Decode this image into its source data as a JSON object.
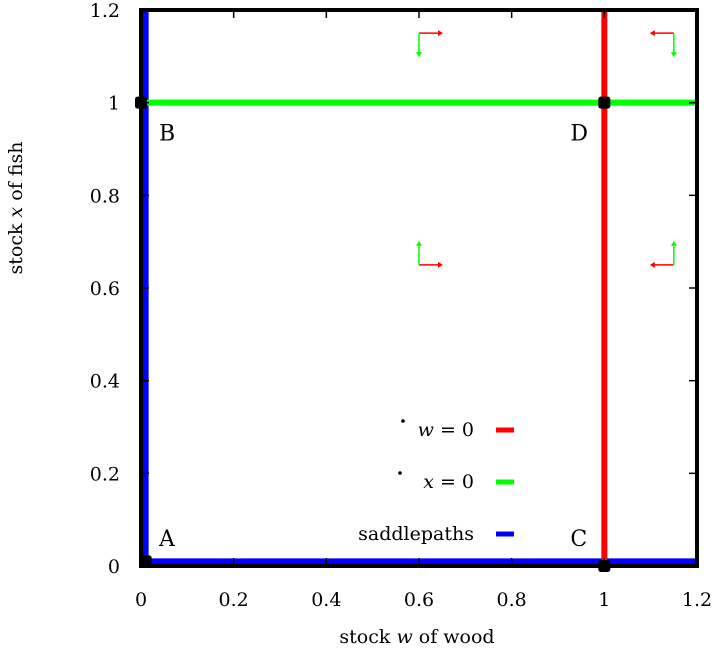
{
  "chart_data": {
    "type": "line",
    "xlabel": {
      "pre": "stock ",
      "var": "w",
      "post": " of wood"
    },
    "ylabel": {
      "pre": "stock ",
      "var": "x",
      "post": " of fish"
    },
    "xlim": [
      0,
      1.2
    ],
    "ylim": [
      0,
      1.2
    ],
    "xticks": [
      {
        "v": 0,
        "label": "0"
      },
      {
        "v": 0.2,
        "label": "0.2"
      },
      {
        "v": 0.4,
        "label": "0.4"
      },
      {
        "v": 0.6,
        "label": "0.6"
      },
      {
        "v": 0.8,
        "label": "0.8"
      },
      {
        "v": 1,
        "label": "1"
      },
      {
        "v": 1.2,
        "label": "1.2"
      }
    ],
    "yticks": [
      {
        "v": 0,
        "label": "0"
      },
      {
        "v": 0.2,
        "label": "0.2"
      },
      {
        "v": 0.4,
        "label": "0.4"
      },
      {
        "v": 0.6,
        "label": "0.6"
      },
      {
        "v": 0.8,
        "label": "0.8"
      },
      {
        "v": 1,
        "label": "1"
      },
      {
        "v": 1.2,
        "label": "1.2"
      }
    ],
    "grid": false,
    "legend_position": "bottom-right",
    "series": [
      {
        "name": "ẇ = 0",
        "color": "#ff0000",
        "points": [
          [
            1,
            0
          ],
          [
            1,
            1.2
          ]
        ]
      },
      {
        "name": "ẋ = 0",
        "color": "#00ff00",
        "points": [
          [
            0,
            1
          ],
          [
            1.2,
            1
          ]
        ]
      },
      {
        "name": "saddlepaths",
        "color": "#0000ff",
        "segments": [
          [
            [
              0.01,
              0
            ],
            [
              0.01,
              1.2
            ]
          ],
          [
            [
              0,
              0.01
            ],
            [
              1.2,
              0.01
            ]
          ]
        ]
      }
    ],
    "legend": [
      {
        "var": "w",
        "rest": " = 0",
        "color": "#ff0000"
      },
      {
        "var": "x",
        "rest": " = 0",
        "color": "#00ff00"
      },
      {
        "label": "saddlepaths",
        "color": "#0000ff"
      }
    ],
    "equilibria": [
      {
        "label": "A",
        "x": 0.01,
        "y": 0.01
      },
      {
        "label": "B",
        "x": 0,
        "y": 1
      },
      {
        "label": "C",
        "x": 1,
        "y": 0
      },
      {
        "label": "D",
        "x": 1,
        "y": 1
      }
    ],
    "direction_arrows": [
      {
        "x": 0.6,
        "y": 1.15,
        "dw": 1,
        "dx": -1
      },
      {
        "x": 1.15,
        "y": 1.15,
        "dw": -1,
        "dx": -1
      },
      {
        "x": 0.6,
        "y": 0.65,
        "dw": 1,
        "dx": 1
      },
      {
        "x": 1.15,
        "y": 0.65,
        "dw": -1,
        "dx": 1
      }
    ],
    "colors": {
      "w_dot_arrow": "#ff0000",
      "x_dot_arrow": "#00ff00",
      "frame": "#000000"
    }
  }
}
